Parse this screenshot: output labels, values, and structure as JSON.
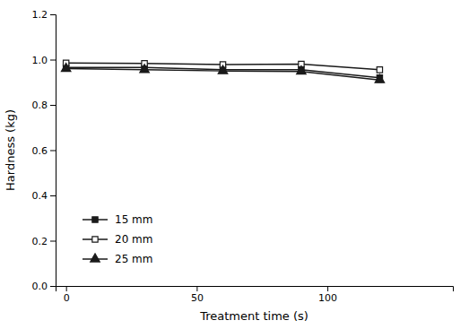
{
  "chart_data": {
    "type": "line",
    "x": [
      0,
      30,
      60,
      90,
      120
    ],
    "series": [
      {
        "name": "15 mm",
        "color": "#1a1a1a",
        "marker": "square",
        "values": [
          0.965,
          0.965,
          0.955,
          0.955,
          0.92
        ],
        "errors": [
          0.01,
          0.008,
          0.008,
          0.008,
          0.012
        ]
      },
      {
        "name": "20 mm",
        "color": "#1a1a1a",
        "marker": "square-open",
        "values": [
          0.985,
          0.983,
          0.978,
          0.98,
          0.955
        ],
        "errors": [
          0.008,
          0.007,
          0.008,
          0.008,
          0.01
        ]
      },
      {
        "name": "25 mm",
        "color": "#1a1a1a",
        "marker": "triangle",
        "values": [
          0.96,
          0.955,
          0.95,
          0.948,
          0.91
        ],
        "errors": [
          0.01,
          0.008,
          0.007,
          0.008,
          0.01
        ]
      }
    ],
    "xlabel": "Treatment time (s)",
    "ylabel": "Hardness (kg)",
    "xlim": [
      -4,
      148
    ],
    "ylim": [
      0.0,
      1.2
    ],
    "xticks": [
      0,
      50,
      100
    ],
    "yticks": [
      {
        "value": 0.0,
        "label": "0.0"
      },
      0.2,
      0.4,
      0.6,
      0.8,
      {
        "value": 1.0,
        "label": "1.0"
      },
      1.2
    ],
    "legend": "lower left",
    "grid": false
  }
}
